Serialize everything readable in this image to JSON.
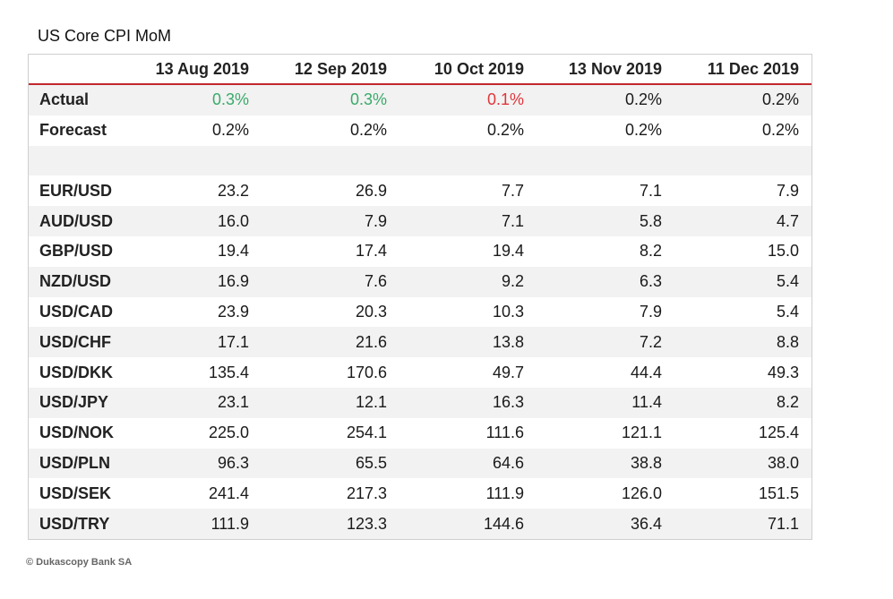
{
  "title": "US Core CPI MoM",
  "footer": "© Dukascopy Bank SA",
  "colors": {
    "header_rule": "#c0282d",
    "positive": "#3aaa6a",
    "negative": "#e0353b",
    "stripe": "#f2f2f2"
  },
  "headers": [
    "",
    "13 Aug 2019",
    "12 Sep 2019",
    "10 Oct 2019",
    "13 Nov 2019",
    "11 Dec 2019"
  ],
  "rows": [
    {
      "label": "Actual",
      "values": [
        "0.3%",
        "0.3%",
        "0.1%",
        "0.2%",
        "0.2%"
      ],
      "tones": [
        "up",
        "up",
        "down",
        "",
        ""
      ]
    },
    {
      "label": "Forecast",
      "values": [
        "0.2%",
        "0.2%",
        "0.2%",
        "0.2%",
        "0.2%"
      ]
    },
    {
      "label": "",
      "values": [
        "",
        "",
        "",
        "",
        ""
      ]
    },
    {
      "label": "EUR/USD",
      "values": [
        "23.2",
        "26.9",
        "7.7",
        "7.1",
        "7.9"
      ]
    },
    {
      "label": "AUD/USD",
      "values": [
        "16.0",
        "7.9",
        "7.1",
        "5.8",
        "4.7"
      ]
    },
    {
      "label": "GBP/USD",
      "values": [
        "19.4",
        "17.4",
        "19.4",
        "8.2",
        "15.0"
      ]
    },
    {
      "label": "NZD/USD",
      "values": [
        "16.9",
        "7.6",
        "9.2",
        "6.3",
        "5.4"
      ]
    },
    {
      "label": "USD/CAD",
      "values": [
        "23.9",
        "20.3",
        "10.3",
        "7.9",
        "5.4"
      ]
    },
    {
      "label": "USD/CHF",
      "values": [
        "17.1",
        "21.6",
        "13.8",
        "7.2",
        "8.8"
      ]
    },
    {
      "label": "USD/DKK",
      "values": [
        "135.4",
        "170.6",
        "49.7",
        "44.4",
        "49.3"
      ]
    },
    {
      "label": "USD/JPY",
      "values": [
        "23.1",
        "12.1",
        "16.3",
        "11.4",
        "8.2"
      ]
    },
    {
      "label": "USD/NOK",
      "values": [
        "225.0",
        "254.1",
        "111.6",
        "121.1",
        "125.4"
      ]
    },
    {
      "label": "USD/PLN",
      "values": [
        "96.3",
        "65.5",
        "64.6",
        "38.8",
        "38.0"
      ]
    },
    {
      "label": "USD/SEK",
      "values": [
        "241.4",
        "217.3",
        "111.9",
        "126.0",
        "151.5"
      ]
    },
    {
      "label": "USD/TRY",
      "values": [
        "111.9",
        "123.3",
        "144.6",
        "36.4",
        "71.1"
      ]
    }
  ]
}
